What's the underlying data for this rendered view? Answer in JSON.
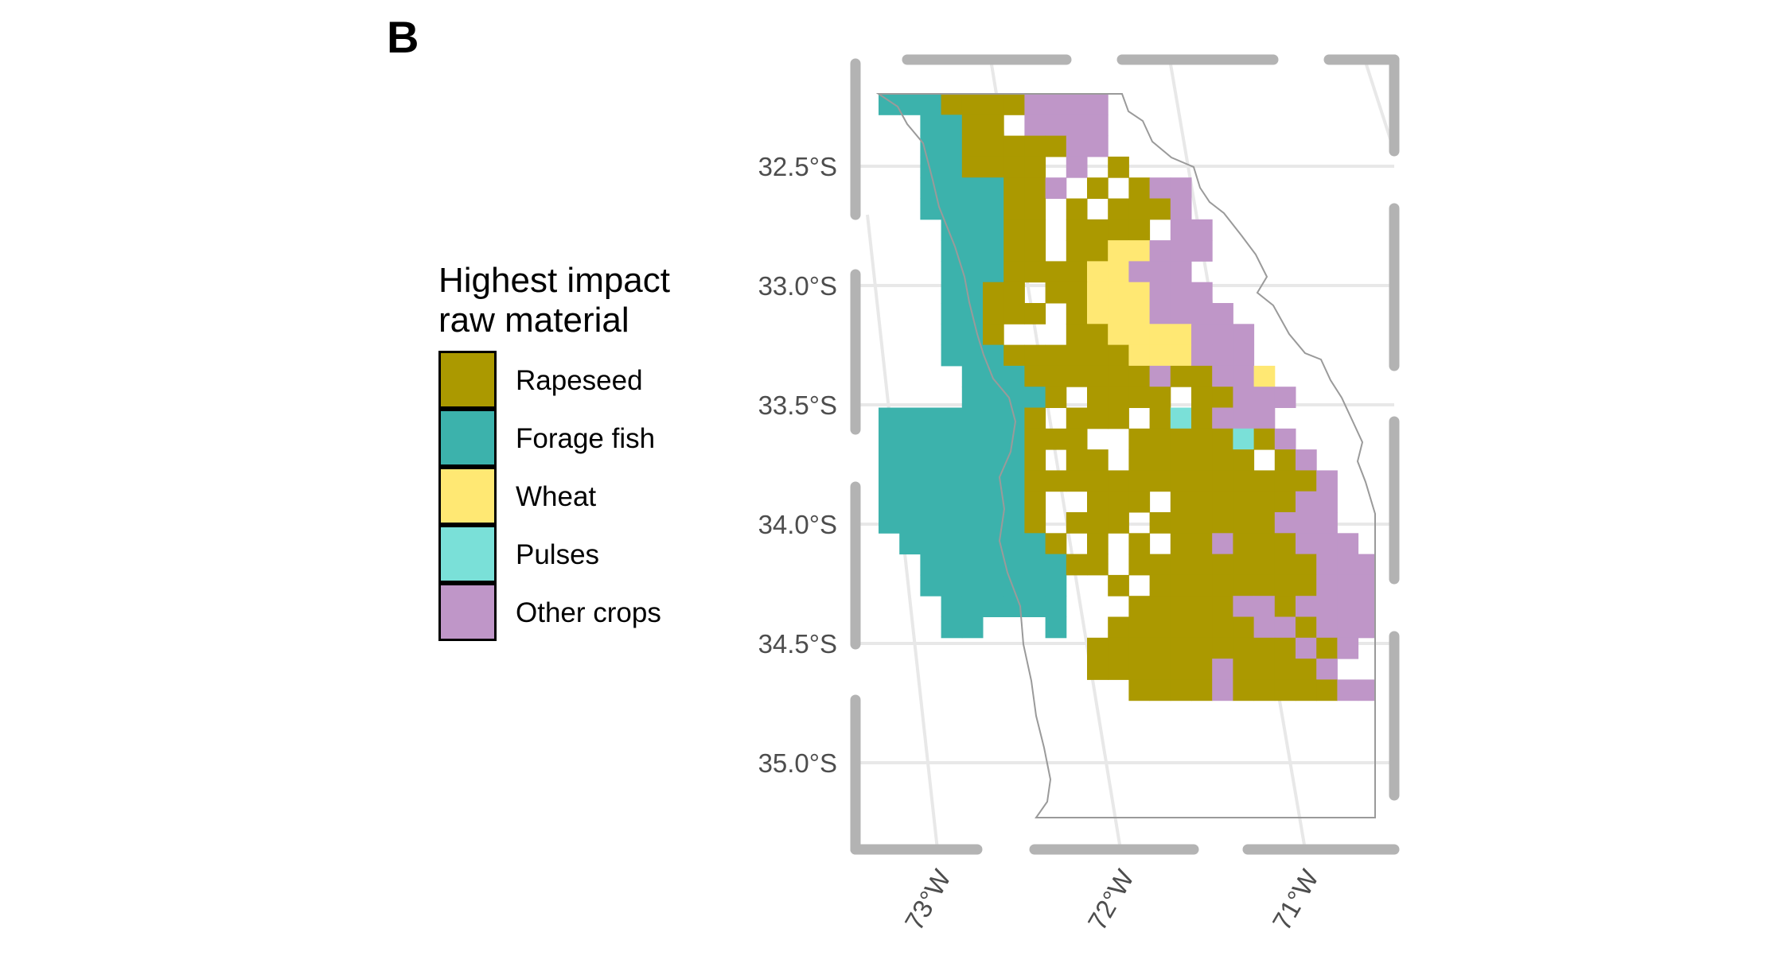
{
  "panel_label": "B",
  "legend": {
    "title_line1": "Highest impact",
    "title_line2": "raw material",
    "items": [
      {
        "label": "Rapeseed",
        "color": "#ab9900"
      },
      {
        "label": "Forage fish",
        "color": "#3cb2ac"
      },
      {
        "label": "Wheat",
        "color": "#ffe873"
      },
      {
        "label": "Pulses",
        "color": "#7ae0d8"
      },
      {
        "label": "Other crops",
        "color": "#bf96c8"
      }
    ]
  },
  "axes": {
    "lat_labels": [
      "32.5°S",
      "33.0°S",
      "33.5°S",
      "34.0°S",
      "34.5°S",
      "35.0°S"
    ],
    "lon_labels": [
      "73°W",
      "72°W",
      "71°W"
    ]
  },
  "grid": {
    "lon_min": -73.3,
    "lat_max": -32.15,
    "cell_deg": 0.083333,
    "codes": {
      "R": "Rapeseed",
      "F": "Forage fish",
      "W": "Wheat",
      "P": "Pulses",
      "O": "Other crops",
      ".": "none"
    },
    "rows": [
      "FFFRRRROOOO............",
      "..FFRR.OOOO............",
      "..FFRRRRROO............",
      "..FFRRRR.O.R...........",
      "..FFFFRRO.R.ROO........",
      "..FFFFRR.R.RRRO........",
      "...FFFRR.RRRR.OO.......",
      "...FFFRR.RRWWOOO.......",
      "...FFFRRRRWWOOO........",
      "...FFRR.RRWWWOOO.......",
      "...FFRRR.RWWWOOOO......",
      "...FFR...RRWWWWOOO.....",
      "...FFFRRRRRRWWWOOO.....",
      "....FFFRRRRRRORROOW....",
      "....FFFFR.RRRR.RROOO...",
      "FFFFFFFR.RRR.RPROOO....",
      "FFFFFFFRRR..RRRRRPRO...",
      "FFFFFFFR.RR.RRRRRR.RO..",
      "FFFFFFFRRRRRRRRRRRRRRO",
      "FFFFFFFR..RRR.RRRRRROO...",
      "FFFFFFFR.RRR.RRRRRROOO..",
      ".FFFFFFFR.R.R.RRORRROOO..",
      "..FFFFFFFRR.RRRRRRRRROOOO..",
      "..FFFFFFF..R.RRRRRRRROOOO..",
      "...FFFFFF...RRRRROOROOOOO..",
      "...FF...F..RRRRRRROOROOO..",
      "..........RRRRRRRRRRORO...",
      "..........RRRRRRORRRRO....",
      "............RRRRORRRRROO..."
    ]
  }
}
